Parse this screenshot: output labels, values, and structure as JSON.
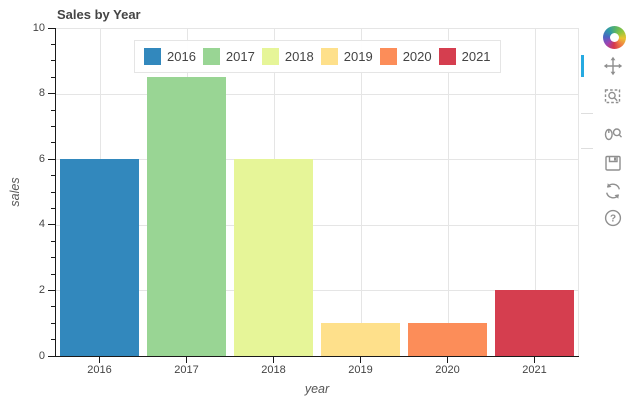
{
  "chart_data": {
    "type": "bar",
    "title": "Sales by Year",
    "xlabel": "year",
    "ylabel": "sales",
    "categories": [
      "2016",
      "2017",
      "2018",
      "2019",
      "2020",
      "2021"
    ],
    "values": [
      6,
      8.5,
      6,
      1,
      1,
      2
    ],
    "bar_colors": [
      "#3288bd",
      "#99d594",
      "#e6f598",
      "#fee08b",
      "#fc8d59",
      "#d53e4f"
    ],
    "ylim": [
      0,
      10
    ],
    "y_major_ticks": [
      0,
      2,
      4,
      6,
      8,
      10
    ],
    "y_minor_tick_step": 0.5,
    "grid": true,
    "legend_position": "top-center"
  },
  "legend": {
    "items": [
      {
        "label": "2016",
        "color": "#3288bd"
      },
      {
        "label": "2017",
        "color": "#99d594"
      },
      {
        "label": "2018",
        "color": "#e6f598"
      },
      {
        "label": "2019",
        "color": "#fee08b"
      },
      {
        "label": "2020",
        "color": "#fc8d59"
      },
      {
        "label": "2021",
        "color": "#d53e4f"
      }
    ]
  },
  "toolbar": {
    "logo": "bokeh-logo",
    "active_color": "#26aae1",
    "tools": [
      {
        "name": "pan",
        "active": true
      },
      {
        "name": "box-zoom",
        "active": false
      },
      {
        "name": "wheel-zoom",
        "active": false
      },
      {
        "name": "save",
        "active": false
      },
      {
        "name": "reset",
        "active": false
      },
      {
        "name": "help",
        "active": false
      }
    ]
  },
  "style": {
    "grid_color": "#e5e5e5",
    "axis_color": "#1a1a1a",
    "tick_label_color": "#444444",
    "title_color": "#444444",
    "icon_color": "#8f8f8f",
    "legend_border": "#e5e5e5"
  }
}
